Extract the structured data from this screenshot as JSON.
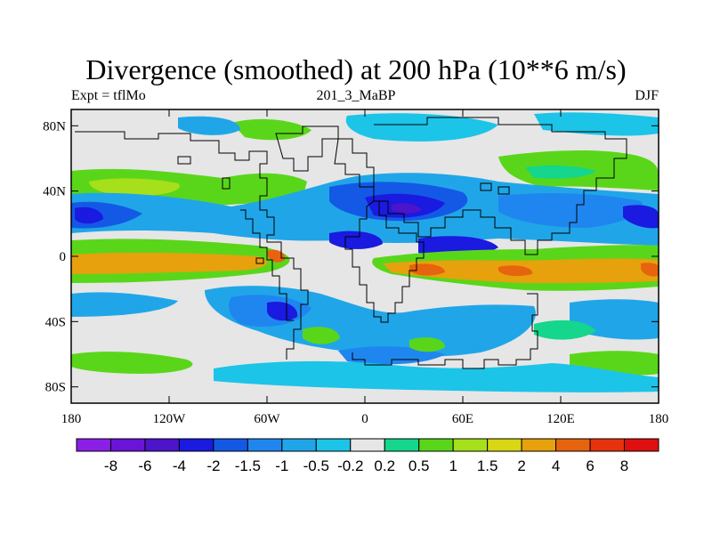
{
  "chart_data": {
    "type": "heatmap",
    "title": "Divergence (smoothed) at 200 hPa (10**6 m/s)",
    "subtitle_left": "Expt = tflMo",
    "subtitle_center": "201_3_MaBP",
    "subtitle_right": "DJF",
    "x_ticks": [
      "180",
      "120W",
      "60W",
      "0",
      "60E",
      "120E",
      "180"
    ],
    "y_ticks": [
      "80N",
      "40N",
      "0",
      "40S",
      "80S"
    ],
    "x_range": [
      -180,
      180
    ],
    "y_range": [
      -90,
      90
    ],
    "colorbar_levels": [
      "-8",
      "-6",
      "-4",
      "-2",
      "-1.5",
      "-1",
      "-0.5",
      "-0.2",
      "0.2",
      "0.5",
      "1",
      "1.5",
      "2",
      "4",
      "6",
      "8"
    ],
    "colorbar_colors": [
      "#8b1fe8",
      "#6a14d8",
      "#4d14cc",
      "#1a1ae0",
      "#1459e6",
      "#1f86f0",
      "#20a6e8",
      "#1cc4e8",
      "#e6e6e6",
      "#14d68c",
      "#5ad61a",
      "#a6e01a",
      "#d9d614",
      "#e6a10d",
      "#e6640d",
      "#e6330d",
      "#e01010"
    ]
  }
}
